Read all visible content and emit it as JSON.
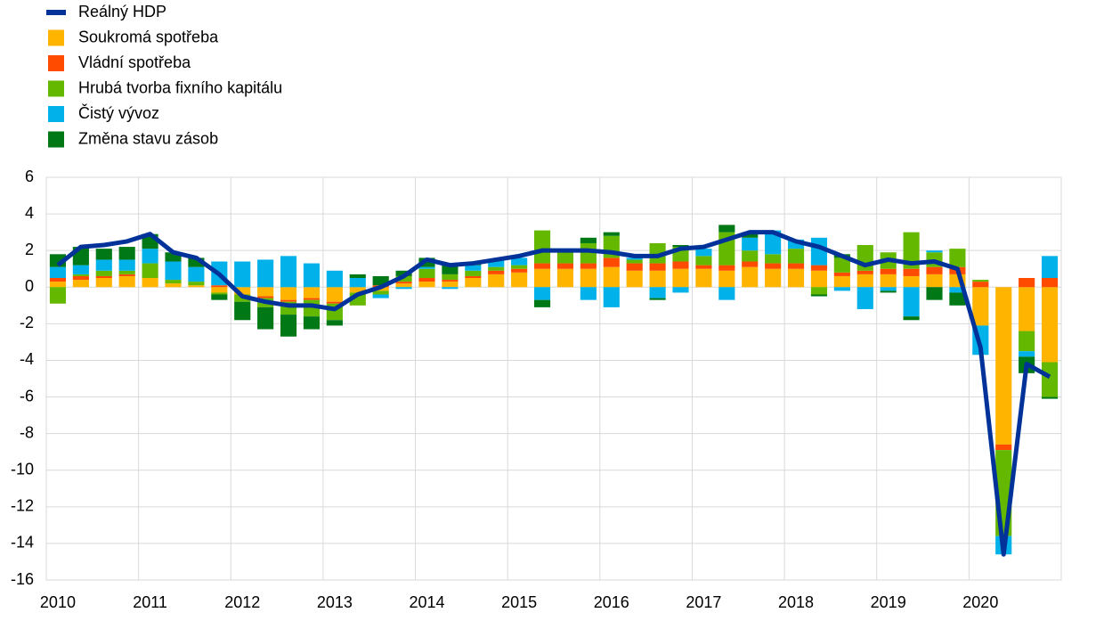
{
  "chart_data": {
    "type": "bar",
    "stacked": true,
    "grid": true,
    "categories": [
      "2010",
      null,
      null,
      null,
      "2011",
      null,
      null,
      null,
      "2012",
      null,
      null,
      null,
      "2013",
      null,
      null,
      null,
      "2014",
      null,
      null,
      null,
      "2015",
      null,
      null,
      null,
      "2016",
      null,
      null,
      null,
      "2017",
      null,
      null,
      null,
      "2018",
      null,
      null,
      null,
      "2019",
      null,
      null,
      null,
      "2020",
      null,
      null,
      null
    ],
    "ylim": [
      -16,
      6
    ],
    "yticks": [
      -16,
      -14,
      -12,
      -10,
      -8,
      -6,
      -4,
      -2,
      0,
      2,
      4,
      6
    ],
    "series": [
      {
        "name": "Reálný HDP",
        "type": "line",
        "color": "#003299",
        "values": [
          1.2,
          2.2,
          2.3,
          2.5,
          2.9,
          1.9,
          1.6,
          0.7,
          -0.5,
          -0.8,
          -1.0,
          -1.0,
          -1.2,
          -0.4,
          0.0,
          0.6,
          1.5,
          1.2,
          1.3,
          1.5,
          1.7,
          2.0,
          2.0,
          2.0,
          1.9,
          1.7,
          1.7,
          2.1,
          2.2,
          2.6,
          3.0,
          3.0,
          2.5,
          2.2,
          1.7,
          1.2,
          1.5,
          1.3,
          1.4,
          1.0,
          -3.3,
          -14.6,
          -4.2,
          -4.9
        ]
      },
      {
        "name": "Soukromá spotřeba",
        "color": "#ffb400",
        "values": [
          0.3,
          0.4,
          0.5,
          0.6,
          0.5,
          0.2,
          0.1,
          -0.3,
          -0.4,
          -0.5,
          -0.7,
          -0.6,
          -0.8,
          -0.3,
          -0.2,
          0.2,
          0.3,
          0.3,
          0.5,
          0.7,
          0.8,
          1.0,
          1.0,
          1.0,
          1.1,
          0.9,
          0.9,
          1.0,
          1.0,
          0.9,
          1.1,
          1.0,
          1.0,
          0.9,
          0.6,
          0.7,
          0.7,
          0.6,
          0.7,
          0.7,
          -2.1,
          -8.6,
          -2.4,
          -4.1
        ]
      },
      {
        "name": "Vládní spotřeba",
        "color": "#ff4b00",
        "values": [
          0.2,
          0.2,
          0.1,
          0.1,
          0.0,
          0.0,
          0.0,
          0.1,
          0.0,
          -0.1,
          -0.1,
          -0.1,
          -0.1,
          0.0,
          0.1,
          0.1,
          0.2,
          0.1,
          0.1,
          0.2,
          0.2,
          0.3,
          0.3,
          0.3,
          0.5,
          0.4,
          0.4,
          0.4,
          0.2,
          0.3,
          0.3,
          0.3,
          0.3,
          0.3,
          0.2,
          0.2,
          0.3,
          0.4,
          0.4,
          0.4,
          0.3,
          -0.3,
          0.5,
          0.5
        ]
      },
      {
        "name": "Hrubá tvorba fixního kapitálu",
        "color": "#65b800",
        "values": [
          -0.9,
          0.1,
          0.3,
          0.2,
          0.8,
          0.2,
          0.2,
          -0.1,
          -0.4,
          -0.5,
          -0.7,
          -0.9,
          -0.9,
          -0.7,
          -0.2,
          0.3,
          0.5,
          0.3,
          0.3,
          0.2,
          0.2,
          1.8,
          0.6,
          1.1,
          1.2,
          0.2,
          1.1,
          0.8,
          0.5,
          1.8,
          0.6,
          0.5,
          0.8,
          -0.4,
          0.8,
          1.4,
          0.9,
          2.0,
          0.8,
          1.0,
          0.1,
          -4.7,
          -1.1,
          -1.9
        ]
      },
      {
        "name": "Čistý vývoz",
        "color": "#00b1ea",
        "values": [
          0.6,
          0.5,
          0.6,
          0.6,
          0.8,
          1.0,
          0.8,
          1.3,
          1.4,
          1.5,
          1.7,
          1.3,
          0.9,
          0.5,
          -0.2,
          -0.1,
          0.1,
          -0.1,
          0.3,
          0.4,
          0.4,
          -0.7,
          0.1,
          -0.7,
          -1.1,
          0.1,
          -0.6,
          -0.3,
          0.4,
          -0.7,
          0.7,
          1.3,
          0.5,
          1.5,
          -0.2,
          -1.2,
          -0.2,
          -1.6,
          0.1,
          -0.3,
          -1.6,
          -1.0,
          -0.3,
          1.2
        ]
      },
      {
        "name": "Změna stavu zásob",
        "color": "#007816",
        "values": [
          0.7,
          1.0,
          0.6,
          0.7,
          0.8,
          0.5,
          0.5,
          -0.3,
          -1.0,
          -1.2,
          -1.2,
          -0.7,
          -0.3,
          0.2,
          0.5,
          0.3,
          0.5,
          0.5,
          0.1,
          0.0,
          0.0,
          -0.4,
          0.0,
          0.3,
          0.2,
          0.0,
          -0.1,
          0.1,
          0.0,
          0.4,
          0.3,
          0.0,
          0.0,
          -0.1,
          0.2,
          0.0,
          -0.1,
          -0.2,
          -0.7,
          -0.7,
          0.0,
          0.0,
          -0.9,
          -0.1
        ]
      }
    ]
  }
}
